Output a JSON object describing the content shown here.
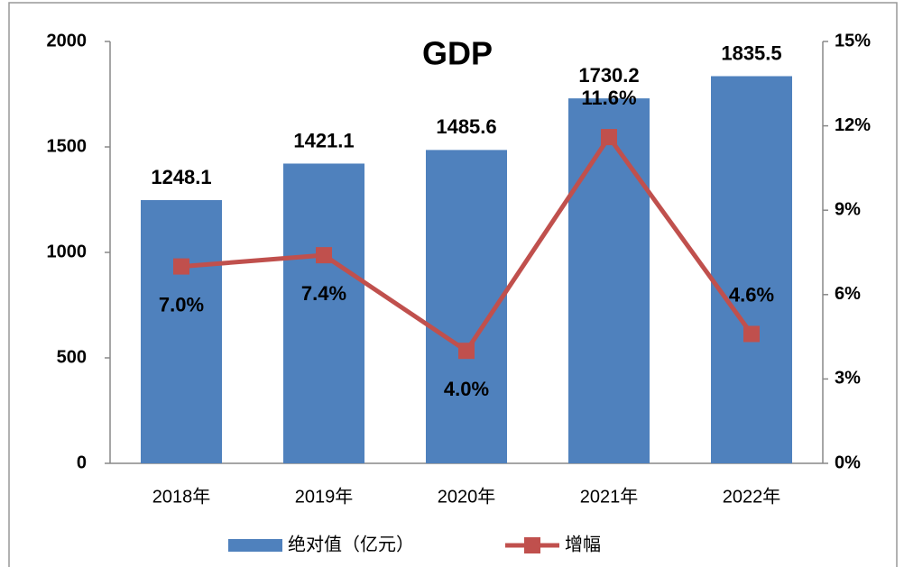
{
  "chart_data": {
    "type": "combo",
    "title": "GDP",
    "categories": [
      "2018年",
      "2019年",
      "2020年",
      "2021年",
      "2022年"
    ],
    "series": [
      {
        "name": "绝对值（亿元）",
        "type": "bar",
        "color": "#4f81bd",
        "values": [
          1248.1,
          1421.1,
          1485.6,
          1730.2,
          1835.5
        ]
      },
      {
        "name": "增幅",
        "type": "line",
        "axis": "y2",
        "color": "#c0504d",
        "values": [
          7.0,
          7.4,
          4.0,
          11.6,
          4.6
        ],
        "value_labels": [
          "7.0%",
          "7.4%",
          "4.0%",
          "11.6%",
          "4.6%"
        ]
      }
    ],
    "ylim": [
      0,
      2000
    ],
    "yticks": [
      0,
      500,
      1000,
      1500,
      2000
    ],
    "y2lim": [
      0,
      15
    ],
    "y2ticks": [
      {
        "value": 0,
        "label": "0%"
      },
      {
        "value": 3,
        "label": "3%"
      },
      {
        "value": 6,
        "label": "6%"
      },
      {
        "value": 9,
        "label": "9%"
      },
      {
        "value": 12,
        "label": "12%"
      },
      {
        "value": 15,
        "label": "15%"
      }
    ],
    "legend": "bottom"
  }
}
